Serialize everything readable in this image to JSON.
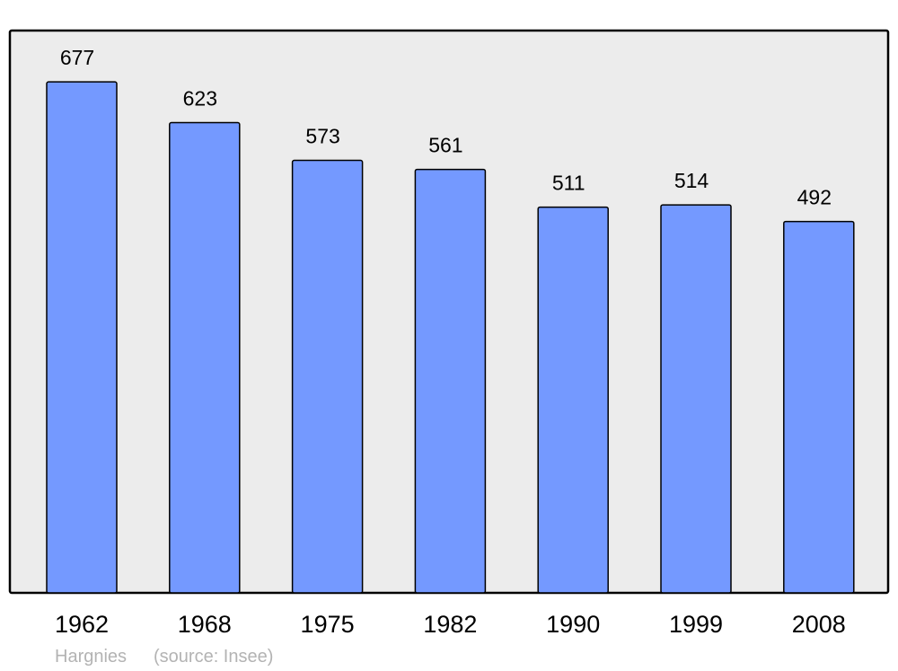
{
  "chart_data": {
    "type": "bar",
    "categories": [
      "1962",
      "1968",
      "1975",
      "1982",
      "1990",
      "1999",
      "2008"
    ],
    "values": [
      677,
      623,
      573,
      561,
      511,
      514,
      492
    ],
    "data_labels": true,
    "ylim": [
      0,
      745
    ],
    "grid": false,
    "legend": "none",
    "colors": {
      "bar": "#7499ff",
      "plot_background": "#ececec",
      "border": "#000000",
      "footer_text": "#b3b3b3"
    }
  },
  "footer": {
    "place": "Hargnies",
    "source": "(source: Insee)"
  }
}
